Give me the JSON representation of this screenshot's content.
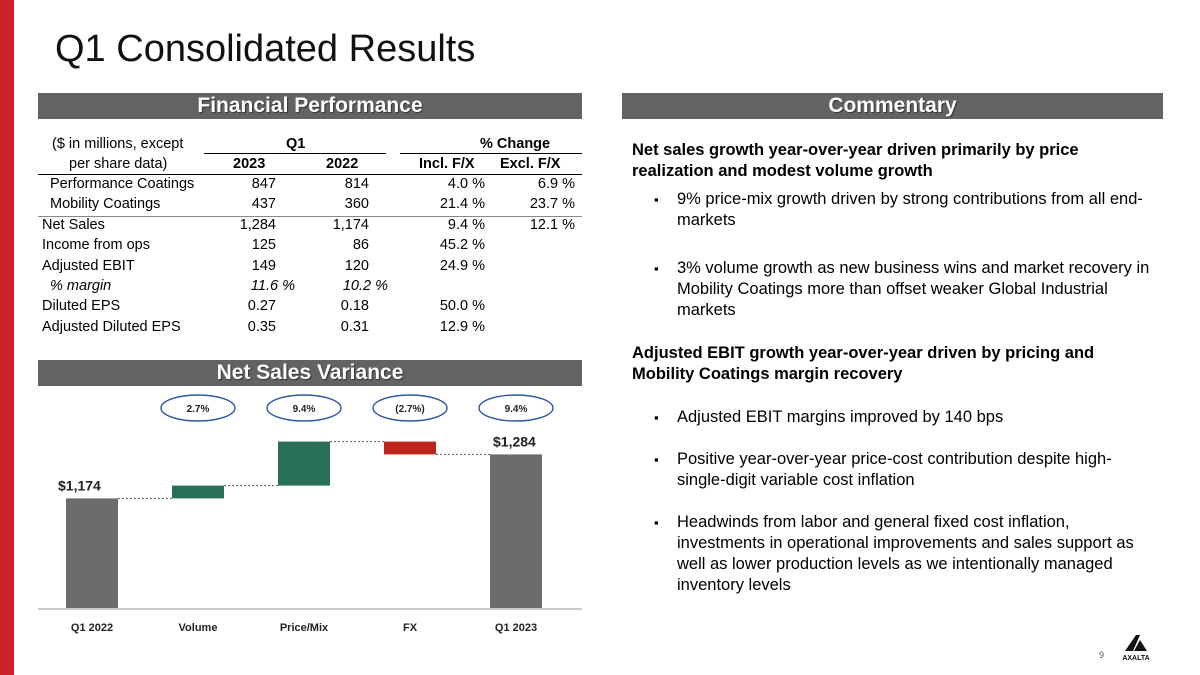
{
  "slide": {
    "title": "Q1 Consolidated Results",
    "page_number": "9",
    "accent_color": "#cc2229",
    "header_bg": "#636363",
    "logo_text": "AXALTA"
  },
  "financial": {
    "header": "Financial Performance",
    "col_label_line1": "($ in millions, except",
    "col_label_line2": "per share data)",
    "group_q1": "Q1",
    "group_change": "% Change",
    "sub_2023": "2023",
    "sub_2022": "2022",
    "sub_incl": "Incl. F/X",
    "sub_excl": "Excl. F/X",
    "rows": [
      {
        "label": "Performance Coatings",
        "y2023": "847",
        "y2022": "814",
        "incl": "4.0 %",
        "excl": "6.9 %"
      },
      {
        "label": "Mobility Coatings",
        "y2023": "437",
        "y2022": "360",
        "incl": "21.4 %",
        "excl": "23.7 %"
      },
      {
        "label": "Net Sales",
        "y2023": "1,284",
        "y2022": "1,174",
        "incl": "9.4 %",
        "excl": "12.1 %"
      },
      {
        "label": "Income from ops",
        "y2023": "125",
        "y2022": "86",
        "incl": "45.2 %",
        "excl": ""
      },
      {
        "label": "Adjusted EBIT",
        "y2023": "149",
        "y2022": "120",
        "incl": "24.9 %",
        "excl": ""
      },
      {
        "label": "% margin",
        "y2023": "11.6 %",
        "y2022": "10.2 %",
        "incl": "",
        "excl": ""
      },
      {
        "label": "Diluted EPS",
        "y2023": "0.27",
        "y2022": "0.18",
        "incl": "50.0 %",
        "excl": ""
      },
      {
        "label": "Adjusted Diluted EPS",
        "y2023": "0.35",
        "y2022": "0.31",
        "incl": "12.9 %",
        "excl": ""
      }
    ]
  },
  "variance": {
    "header": "Net Sales Variance",
    "badges": [
      "2.7%",
      "9.4%",
      "(2.7%)",
      "9.4%"
    ]
  },
  "chart_data": {
    "type": "bar",
    "subtype": "waterfall",
    "categories": [
      "Q1 2022",
      "Volume",
      "Price/Mix",
      "FX",
      "Q1 2023"
    ],
    "steps": [
      {
        "kind": "total",
        "value": 1174,
        "label": "$1,174",
        "color": "#6b6b6b"
      },
      {
        "kind": "delta",
        "value": 32,
        "color": "#2a6f5a"
      },
      {
        "kind": "delta",
        "value": 110,
        "color": "#2a6f5a"
      },
      {
        "kind": "delta",
        "value": -32,
        "color": "#c0231f"
      },
      {
        "kind": "total",
        "value": 1284,
        "label": "$1,284",
        "color": "#6b6b6b"
      }
    ],
    "ylim": [
      900,
      1320
    ],
    "grid": false,
    "title": "",
    "xlabel": "",
    "ylabel": ""
  },
  "commentary": {
    "header": "Commentary",
    "heading1": "Net sales growth year-over-year driven primarily by price realization and modest volume growth",
    "bullet1a": "9% price-mix growth driven by strong contributions from all end-markets",
    "bullet1b": "3% volume growth as new business wins and market recovery in Mobility Coatings more than offset weaker Global Industrial markets",
    "heading2": "Adjusted EBIT growth year-over-year driven by pricing and Mobility Coatings margin recovery",
    "bullet2a": "Adjusted EBIT margins improved by 140 bps",
    "bullet2b": "Positive year-over-year price-cost contribution despite high-single-digit variable cost inflation",
    "bullet2c": "Headwinds from labor and general fixed cost inflation, investments in operational improvements and sales support as well as lower production levels as we intentionally managed inventory levels",
    "bullet_symbol": "▪"
  }
}
